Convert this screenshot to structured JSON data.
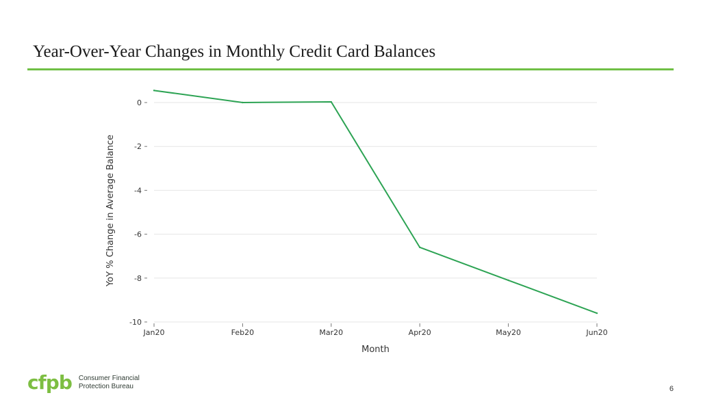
{
  "slide": {
    "title": "Year-Over-Year Changes in Monthly Credit Card Balances",
    "page_number": "6",
    "logo_mark": "cfpb",
    "logo_line1": "Consumer Financial",
    "logo_line2": "Protection Bureau",
    "accent_color": "#6fbf45"
  },
  "chart_data": {
    "type": "line",
    "title": "",
    "xlabel": "Month",
    "ylabel": "YoY % Change in Average Balance",
    "categories": [
      "Jan20",
      "Feb20",
      "Mar20",
      "Apr20",
      "May20",
      "Jun20"
    ],
    "series": [
      {
        "values": [
          0.55,
          0.0,
          0.03,
          -6.6,
          -8.1,
          -9.6
        ],
        "color": "#2ca353"
      }
    ],
    "ylim": [
      -10,
      0.6
    ],
    "yticks": [
      0,
      -2,
      -4,
      -6,
      -8,
      -10
    ],
    "grid": true,
    "legend": "none"
  }
}
